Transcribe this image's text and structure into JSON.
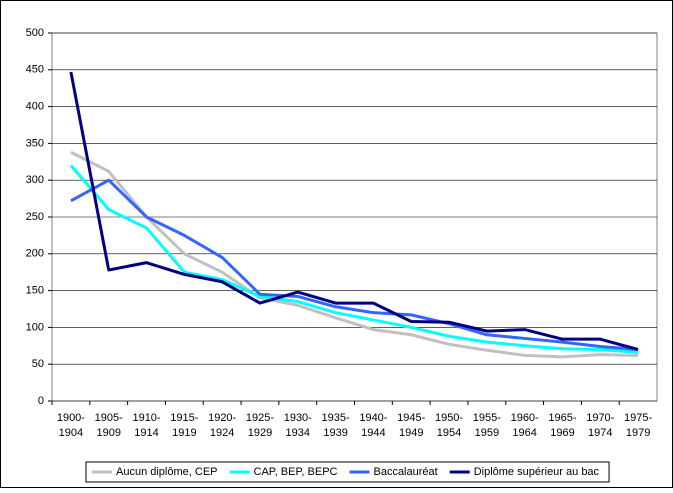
{
  "chart_data": {
    "type": "line",
    "categories": [
      "1900-1904",
      "1905-1909",
      "1910-1914",
      "1915-1919",
      "1920-1924",
      "1925-1929",
      "1930-1934",
      "1935-1939",
      "1940-1944",
      "1945-1949",
      "1950-1954",
      "1955-1959",
      "1960-1964",
      "1965-1969",
      "1970-1974",
      "1975-1979"
    ],
    "series": [
      {
        "name": "Aucun diplôme, CEP",
        "color": "#c0c0c0",
        "values": [
          338,
          312,
          250,
          200,
          175,
          140,
          130,
          113,
          97,
          90,
          77,
          69,
          62,
          60,
          63,
          62
        ]
      },
      {
        "name": "CAP, BEP, BEPC",
        "color": "#00ffff",
        "values": [
          320,
          260,
          235,
          175,
          165,
          142,
          135,
          120,
          110,
          100,
          88,
          80,
          75,
          71,
          70,
          66
        ]
      },
      {
        "name": "Baccalauréat",
        "color": "#3366ff",
        "values": [
          272,
          300,
          250,
          225,
          195,
          145,
          142,
          128,
          120,
          117,
          105,
          90,
          85,
          80,
          74,
          70
        ]
      },
      {
        "name": "Diplôme supérieur au bac",
        "color": "#000080",
        "values": [
          447,
          178,
          188,
          172,
          162,
          133,
          148,
          133,
          133,
          108,
          107,
          95,
          97,
          84,
          84,
          70
        ]
      }
    ],
    "ylim": [
      0,
      500
    ],
    "yticks": [
      0,
      50,
      100,
      150,
      200,
      250,
      300,
      350,
      400,
      450,
      500
    ],
    "grid": true,
    "legend": "bottom"
  }
}
